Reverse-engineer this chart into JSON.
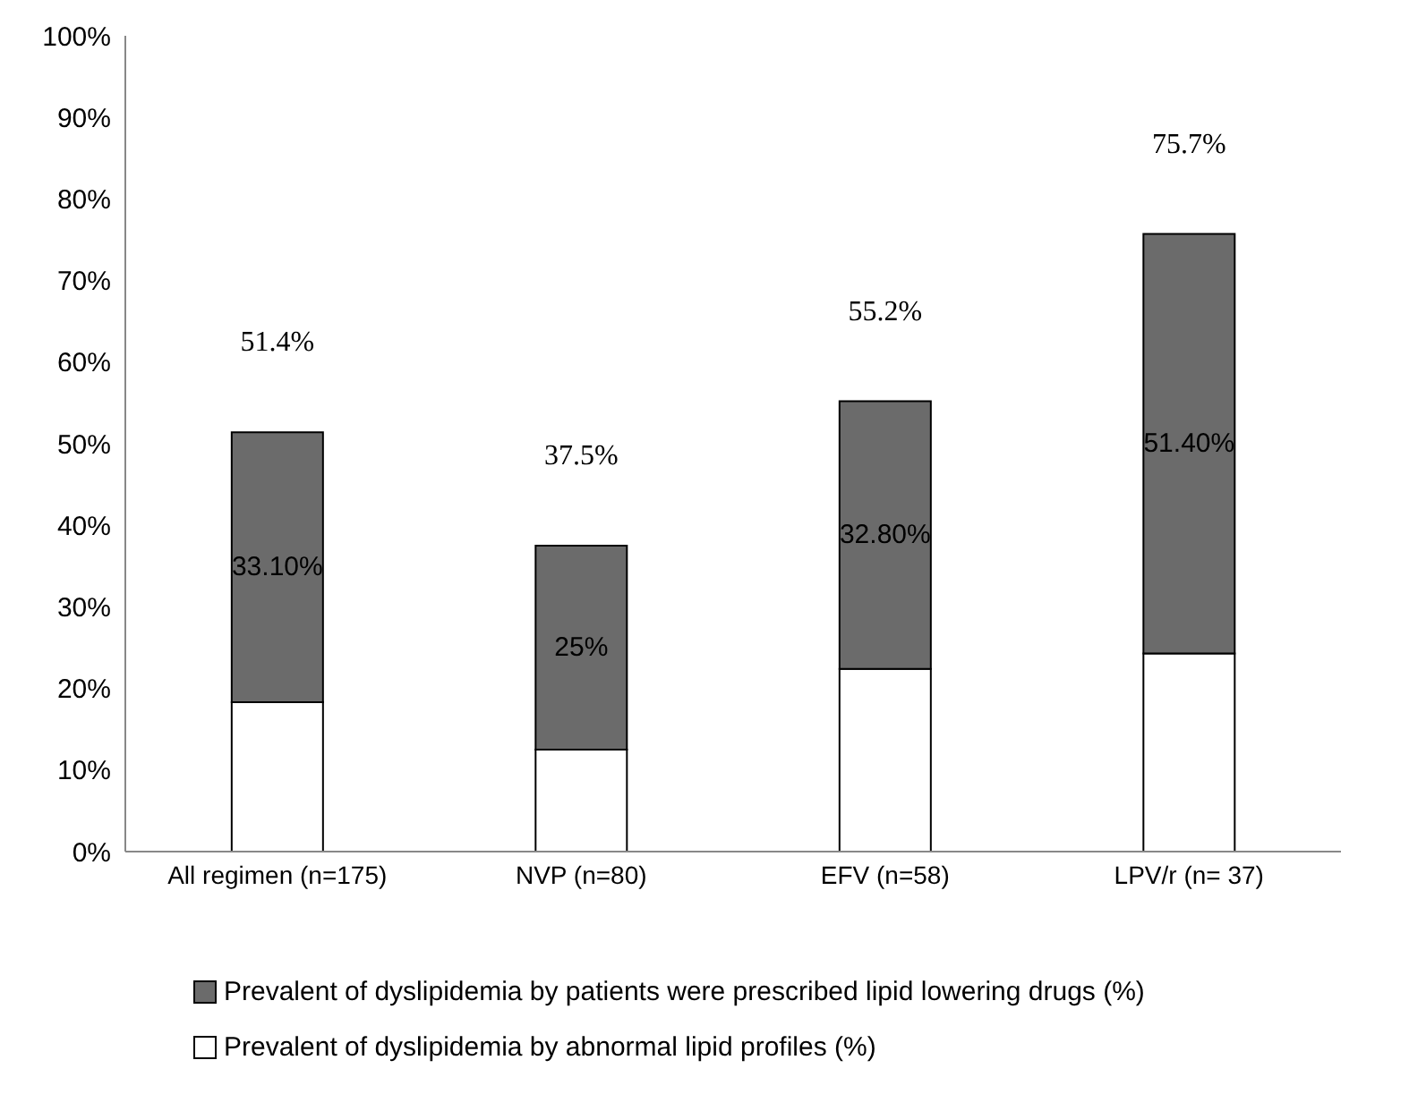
{
  "chart_data": {
    "type": "bar",
    "stacked": true,
    "categories": [
      "All regimen (n=175)",
      "NVP (n=80)",
      "EFV (n=58)",
      "LPV/r  (n= 37)"
    ],
    "series": [
      {
        "name": "Prevalent of dyslipidemia by abnormal lipid profiles (%)",
        "color": "#ffffff",
        "values": [
          18.3,
          12.5,
          22.4,
          24.3
        ]
      },
      {
        "name": "Prevalent of dyslipidemia by patients were prescribed lipid lowering drugs (%)",
        "color": "#6b6b6b",
        "values": [
          33.1,
          25,
          32.8,
          51.4
        ],
        "value_labels": [
          "33.10%",
          "25%",
          "32.80%",
          "51.40%"
        ]
      }
    ],
    "totals": [
      "51.4%",
      "37.5%",
      "55.2%",
      "75.7%"
    ],
    "ylim": [
      0,
      100
    ],
    "yticks": [
      {
        "value": 0,
        "label": "0%"
      },
      {
        "value": 10,
        "label": "10%"
      },
      {
        "value": 20,
        "label": "20%"
      },
      {
        "value": 30,
        "label": "30%"
      },
      {
        "value": 40,
        "label": "40%"
      },
      {
        "value": 50,
        "label": "50%"
      },
      {
        "value": 60,
        "label": "60%"
      },
      {
        "value": 70,
        "label": "70%"
      },
      {
        "value": 80,
        "label": "80%"
      },
      {
        "value": 90,
        "label": "90%"
      },
      {
        "value": 100,
        "label": "100%"
      }
    ],
    "grid": false,
    "legend": "bottom"
  }
}
